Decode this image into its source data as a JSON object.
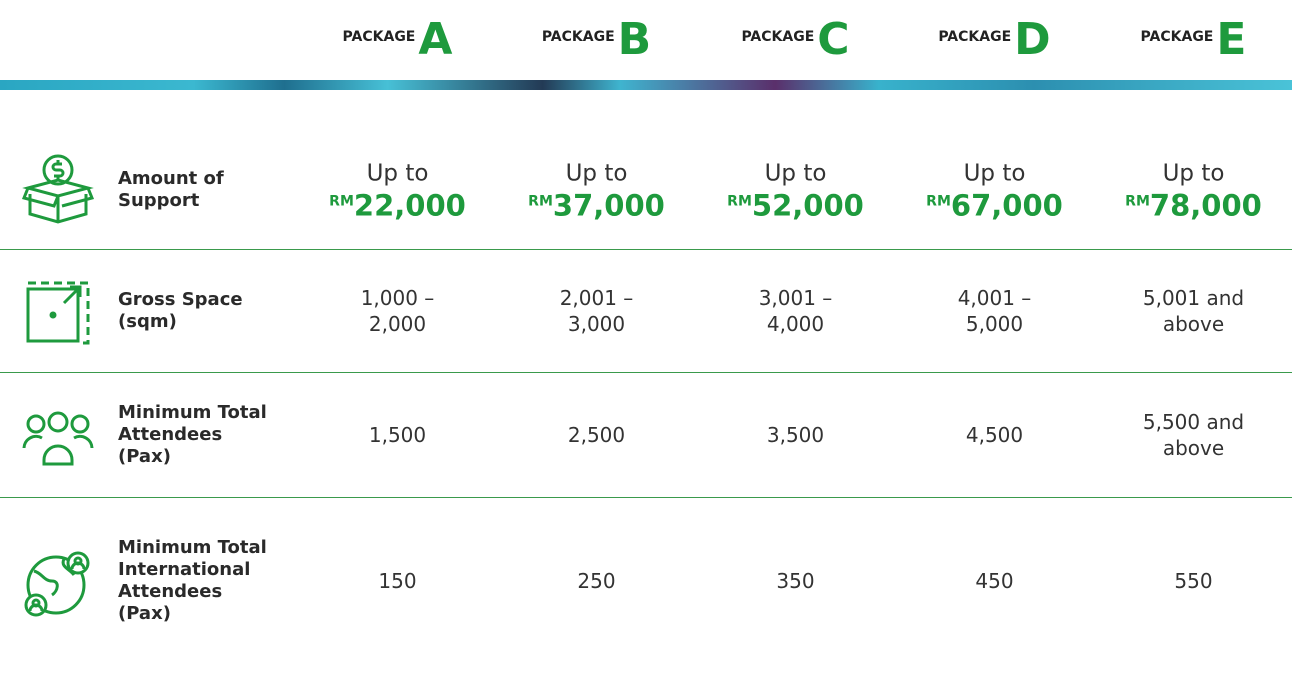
{
  "header": {
    "packages": [
      {
        "label": "PACKAGE",
        "letter": "A"
      },
      {
        "label": "PACKAGE",
        "letter": "B"
      },
      {
        "label": "PACKAGE",
        "letter": "C"
      },
      {
        "label": "PACKAGE",
        "letter": "D"
      },
      {
        "label": "PACKAGE",
        "letter": "E"
      }
    ]
  },
  "table": {
    "rows": [
      {
        "label": "Amount of Support",
        "cells": [
          {
            "prefix": "Up to",
            "currency": "RM",
            "amount": "22,000"
          },
          {
            "prefix": "Up to",
            "currency": "RM",
            "amount": "37,000"
          },
          {
            "prefix": "Up to",
            "currency": "RM",
            "amount": "52,000"
          },
          {
            "prefix": "Up to",
            "currency": "RM",
            "amount": "67,000"
          },
          {
            "prefix": "Up to",
            "currency": "RM",
            "amount": "78,000"
          }
        ]
      },
      {
        "label": "Gross Space (sqm)",
        "cells": [
          "1,000 – 2,000",
          "2,001 – 3,000",
          "3,001 – 4,000",
          "4,001 – 5,000",
          "5,001 and above"
        ]
      },
      {
        "label": "Minimum Total Attendees (Pax)",
        "cells": [
          "1,500",
          "2,500",
          "3,500",
          "4,500",
          "5,500 and above"
        ]
      },
      {
        "label": "Minimum Total International Attendees (Pax)",
        "cells": [
          "150",
          "250",
          "350",
          "450",
          "550"
        ]
      }
    ]
  }
}
